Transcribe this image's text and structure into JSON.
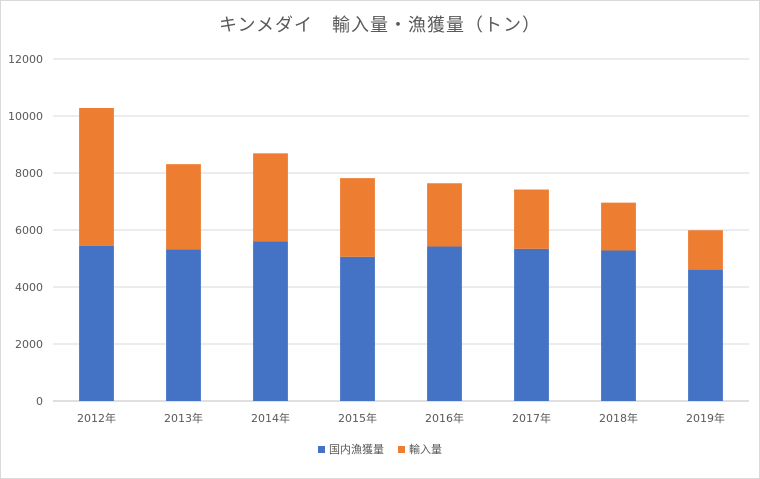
{
  "chart_data": {
    "type": "bar",
    "stacked": true,
    "title": "キンメダイ　輸入量・漁獲量（トン）",
    "xlabel": "",
    "ylabel": "",
    "categories": [
      "2012年",
      "2013年",
      "2014年",
      "2015年",
      "2016年",
      "2017年",
      "2018年",
      "2019年"
    ],
    "series": [
      {
        "name": "国内漁獲量",
        "color": "#4472c4",
        "values": [
          5450,
          5320,
          5600,
          5060,
          5420,
          5340,
          5280,
          4610
        ]
      },
      {
        "name": "輸入量",
        "color": "#ed7d31",
        "values": [
          4830,
          2990,
          3090,
          2760,
          2220,
          2080,
          1680,
          1380
        ]
      }
    ],
    "ylim": [
      0,
      12000
    ],
    "yticks": [
      0,
      2000,
      4000,
      6000,
      8000,
      10000,
      12000
    ],
    "grid": true,
    "legend_position": "bottom"
  }
}
